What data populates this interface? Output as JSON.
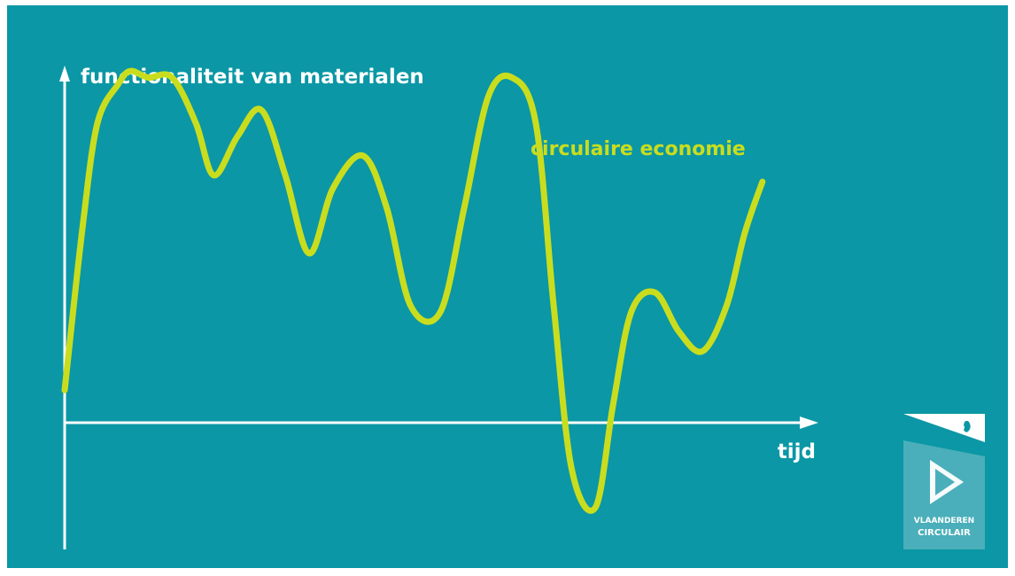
{
  "chart_data": {
    "type": "line",
    "ylabel": "functionaliteit van materialen",
    "xlabel": "tijd",
    "series": [
      {
        "name": "circulaire economie",
        "color": "#c9dd1e",
        "points": [
          [
            0.0,
            0.07
          ],
          [
            0.06,
            0.32
          ],
          [
            0.11,
            0.48
          ],
          [
            0.18,
            0.54
          ],
          [
            0.22,
            0.56
          ],
          [
            0.28,
            0.55
          ],
          [
            0.36,
            0.55
          ],
          [
            0.44,
            0.48
          ],
          [
            0.5,
            0.4
          ],
          [
            0.58,
            0.46
          ],
          [
            0.66,
            0.5
          ],
          [
            0.74,
            0.4
          ],
          [
            0.82,
            0.28
          ],
          [
            0.9,
            0.38
          ],
          [
            1.0,
            0.43
          ],
          [
            1.08,
            0.35
          ],
          [
            1.16,
            0.2
          ],
          [
            1.26,
            0.19
          ],
          [
            1.34,
            0.35
          ],
          [
            1.42,
            0.52
          ],
          [
            1.5,
            0.55
          ],
          [
            1.58,
            0.48
          ],
          [
            1.64,
            0.2
          ],
          [
            1.7,
            -0.05
          ],
          [
            1.78,
            -0.11
          ],
          [
            1.84,
            0.05
          ],
          [
            1.9,
            0.19
          ],
          [
            1.98,
            0.22
          ],
          [
            2.06,
            0.16
          ],
          [
            2.14,
            0.13
          ],
          [
            2.22,
            0.2
          ],
          [
            2.28,
            0.31
          ],
          [
            2.34,
            0.39
          ]
        ]
      }
    ],
    "xlim": [
      0,
      2.4
    ],
    "ylim": [
      -0.15,
      0.65
    ],
    "grid": false,
    "legend": "inline label",
    "background": "#0b97a5",
    "axis_color": "#ffffff"
  },
  "logo": {
    "line1": "VLAANDEREN",
    "line2": "CIRCULAIR"
  }
}
